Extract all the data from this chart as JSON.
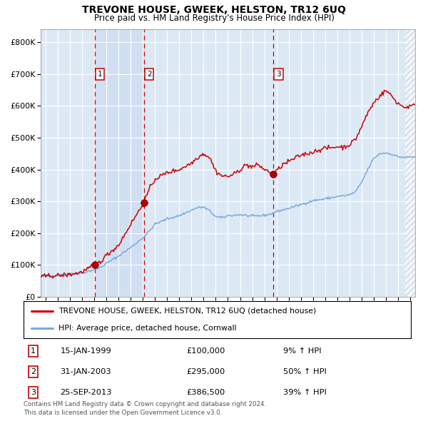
{
  "title": "TREVONE HOUSE, GWEEK, HELSTON, TR12 6UQ",
  "subtitle": "Price paid vs. HM Land Registry's House Price Index (HPI)",
  "legend_line1": "TREVONE HOUSE, GWEEK, HELSTON, TR12 6UQ (detached house)",
  "legend_line2": "HPI: Average price, detached house, Cornwall",
  "purchases": [
    {
      "num": 1,
      "date": "15-JAN-1999",
      "price": 100000,
      "pct": "9% ↑ HPI",
      "year": 1999.04
    },
    {
      "num": 2,
      "date": "31-JAN-2003",
      "price": 295000,
      "pct": "50% ↑ HPI",
      "year": 2003.08
    },
    {
      "num": 3,
      "date": "25-SEP-2013",
      "price": 386500,
      "pct": "39% ↑ HPI",
      "year": 2013.73
    }
  ],
  "footnote1": "Contains HM Land Registry data © Crown copyright and database right 2024.",
  "footnote2": "This data is licensed under the Open Government Licence v3.0.",
  "hpi_color": "#7aaadd",
  "price_color": "#cc0000",
  "bg_color": "#dce9f5",
  "ylim": [
    0,
    840000
  ],
  "xlim_start": 1994.6,
  "xlim_end": 2025.4
}
